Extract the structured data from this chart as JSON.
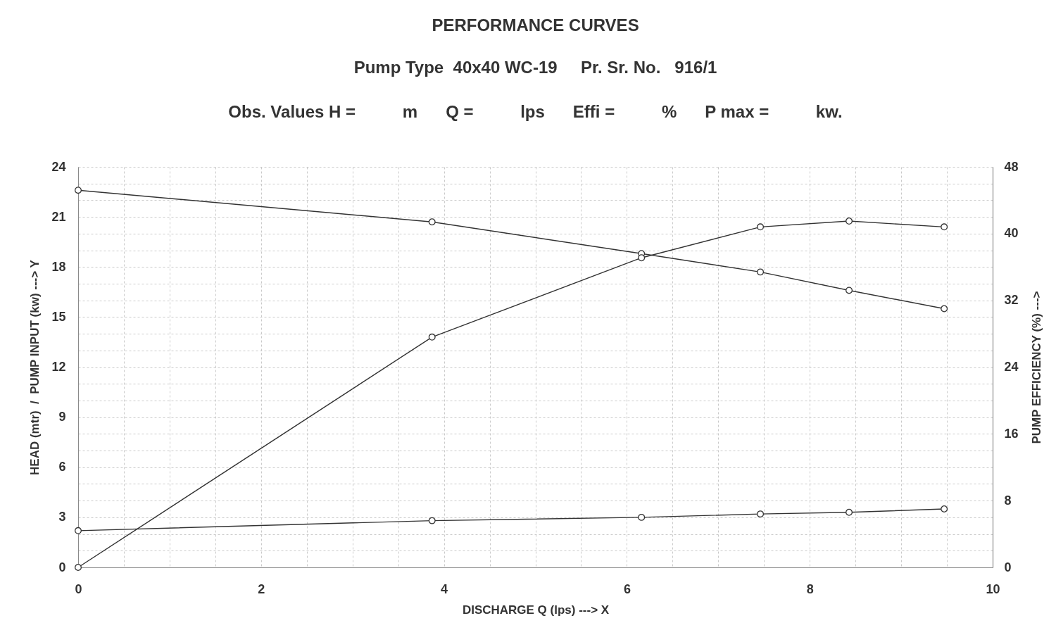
{
  "chart_data": {
    "type": "line",
    "title": "PERFORMANCE CURVES",
    "subtitle": "Pump Type  40x40 WC-19     Pr. Sr. No.   916/1",
    "annotations": [
      "Obs. Values H =          m      Q =          lps      Effi =          %      P max =          kw."
    ],
    "xlabel": "DISCHARGE Q (lps) ---> X",
    "ylabel": "HEAD (mtr)  /  PUMP INPUT (kw) ---> Y",
    "y2label": "PUMP EFFICIENCY (%) --->",
    "x": [
      0,
      3.87,
      6.16,
      7.46,
      8.43,
      9.47
    ],
    "series": [
      {
        "color": "#333333",
        "values": [
          22.6,
          20.7,
          18.8,
          17.7,
          16.6,
          15.5
        ]
      },
      {
        "color": "#333333",
        "axis": "y2",
        "values": [
          0,
          27.6,
          37.1,
          40.8,
          41.5,
          40.8
        ]
      },
      {
        "color": "#333333",
        "values": [
          2.2,
          2.8,
          3.0,
          3.2,
          3.3,
          3.5
        ]
      }
    ],
    "xlim": [
      0,
      10
    ],
    "xticks": [
      0,
      {
        "value": 0.5,
        "label": null
      },
      {
        "value": 1,
        "label": null
      },
      {
        "value": 1.5,
        "label": null
      },
      2,
      {
        "value": 2.5,
        "label": null
      },
      {
        "value": 3,
        "label": null
      },
      {
        "value": 3.5,
        "label": null
      },
      4,
      {
        "value": 4.5,
        "label": null
      },
      {
        "value": 5,
        "label": null
      },
      {
        "value": 5.5,
        "label": null
      },
      6,
      {
        "value": 6.5,
        "label": null
      },
      {
        "value": 7,
        "label": null
      },
      {
        "value": 7.5,
        "label": null
      },
      8,
      {
        "value": 8.5,
        "label": null
      },
      {
        "value": 9,
        "label": null
      },
      {
        "value": 9.5,
        "label": null
      },
      10
    ],
    "ylim": [
      0,
      24
    ],
    "yticks": [
      0,
      {
        "value": 1,
        "label": null
      },
      {
        "value": 2,
        "label": null
      },
      3,
      {
        "value": 4,
        "label": null
      },
      {
        "value": 5,
        "label": null
      },
      6,
      {
        "value": 7,
        "label": null
      },
      {
        "value": 8,
        "label": null
      },
      9,
      {
        "value": 10,
        "label": null
      },
      {
        "value": 11,
        "label": null
      },
      12,
      {
        "value": 13,
        "label": null
      },
      {
        "value": 14,
        "label": null
      },
      15,
      {
        "value": 16,
        "label": null
      },
      {
        "value": 17,
        "label": null
      },
      18,
      {
        "value": 19,
        "label": null
      },
      {
        "value": 20,
        "label": null
      },
      21,
      {
        "value": 22,
        "label": null
      },
      {
        "value": 23,
        "label": null
      },
      24
    ],
    "y2lim": [
      0,
      48
    ],
    "y2ticks": [
      0,
      8,
      16,
      24,
      32,
      40,
      48
    ],
    "grid": true,
    "marker": "circle",
    "line_style": "solid"
  }
}
